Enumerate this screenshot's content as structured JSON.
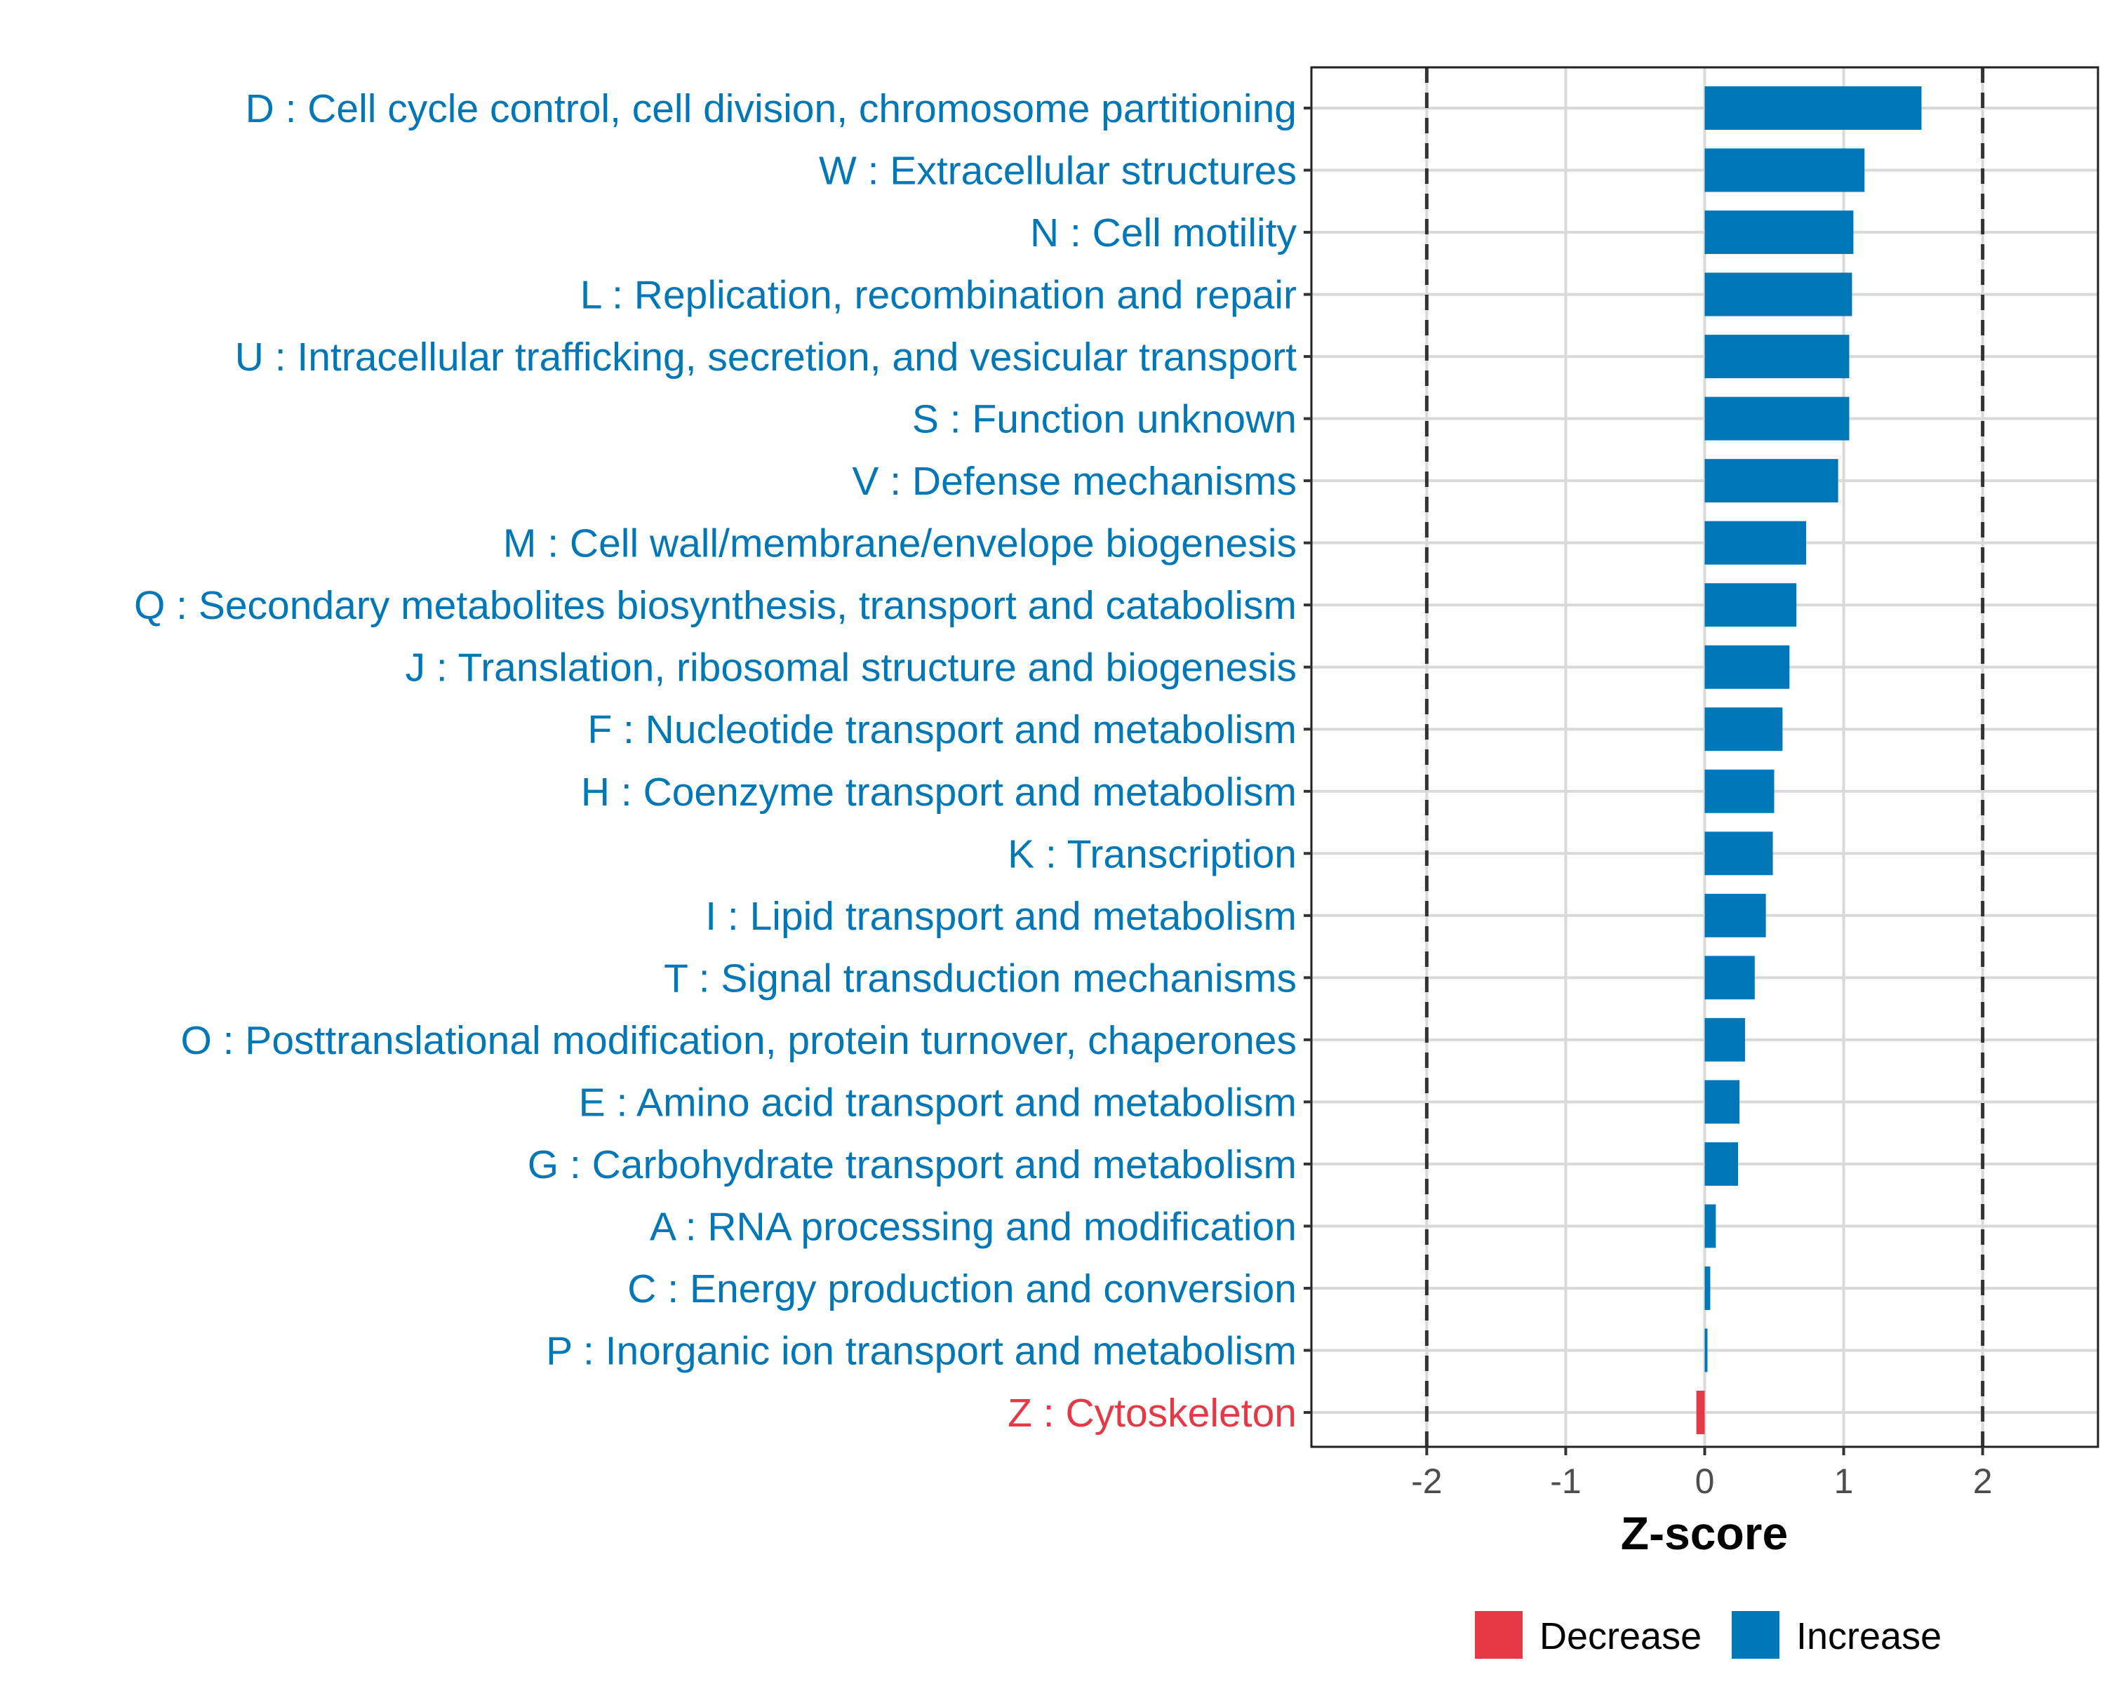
{
  "chart_data": {
    "type": "bar",
    "orientation": "horizontal",
    "title": "",
    "xlabel": "Z-score",
    "ylabel": "",
    "xlim": [
      -2.83,
      2.83
    ],
    "xticks": [
      -2,
      -1,
      0,
      1,
      2
    ],
    "xtick_labels": [
      "-2",
      "-1",
      "0",
      "1",
      "2"
    ],
    "reference_lines": [
      -2,
      2
    ],
    "grid": true,
    "categories": [
      "D : Cell cycle control, cell division, chromosome partitioning",
      "W : Extracellular structures",
      "N : Cell motility",
      "L : Replication, recombination and repair",
      "U : Intracellular trafficking, secretion, and vesicular transport",
      "S : Function unknown",
      "V : Defense mechanisms",
      "M : Cell wall/membrane/envelope biogenesis",
      "Q : Secondary metabolites biosynthesis, transport and catabolism",
      "J : Translation, ribosomal structure and biogenesis",
      "F : Nucleotide transport and metabolism",
      "H : Coenzyme transport and metabolism",
      "K : Transcription",
      "I : Lipid transport and metabolism",
      "T : Signal transduction mechanisms",
      "O : Posttranslational modification, protein turnover, chaperones",
      "E : Amino acid transport and metabolism",
      "G : Carbohydrate transport and metabolism",
      "A : RNA processing and modification",
      "C : Energy production and conversion",
      "P : Inorganic ion transport and metabolism",
      "Z : Cytoskeleton"
    ],
    "values": [
      1.56,
      1.15,
      1.07,
      1.06,
      1.04,
      1.04,
      0.96,
      0.73,
      0.66,
      0.61,
      0.56,
      0.5,
      0.49,
      0.44,
      0.36,
      0.29,
      0.25,
      0.24,
      0.08,
      0.04,
      0.02,
      -0.06
    ],
    "legend": {
      "placement": "bottom",
      "entries": [
        {
          "label": "Decrease",
          "color": "#E63946"
        },
        {
          "label": "Increase",
          "color": "#0077B6"
        }
      ]
    },
    "colors": {
      "increase": "#0077B6",
      "decrease": "#E63946",
      "grid": "#D9D9D9",
      "refline": "#333333"
    }
  }
}
